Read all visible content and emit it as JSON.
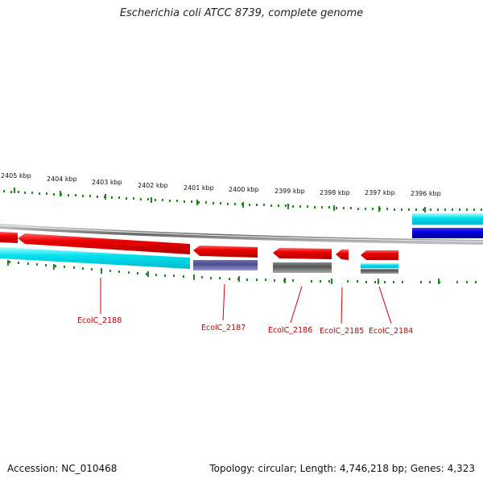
{
  "title": "Escherichia coli ATCC 8739, complete genome",
  "accession": "Accession: NC_010468",
  "summary": "Topology: circular; Length: 4,746,218 bp; Genes: 4,323",
  "kbp_labels": [
    "2405 kbp",
    "2404 kbp",
    "2403 kbp",
    "2402 kbp",
    "2401 kbp",
    "2400 kbp",
    "2399 kbp",
    "2398 kbp",
    "2397 kbp",
    "2396 kbp"
  ],
  "genes": [
    {
      "name": "EcolC_2188",
      "strand": "-",
      "color": "#ee0000"
    },
    {
      "name": "EcolC_2187",
      "strand": "-",
      "color": "#ee0000"
    },
    {
      "name": "EcolC_2186",
      "strand": "-",
      "color": "#ee0000"
    },
    {
      "name": "EcolC_2185",
      "strand": "-",
      "color": "#ee0000"
    },
    {
      "name": "EcolC_2184",
      "strand": "-",
      "color": "#ee0000"
    }
  ],
  "colors": {
    "cds": "#ee0000",
    "cyan": "#00d8e8",
    "blue": "#0000dd",
    "purple": "#4a4a90",
    "gray": "#555555",
    "tick": "#1a8a1a",
    "label": "#c00000"
  }
}
